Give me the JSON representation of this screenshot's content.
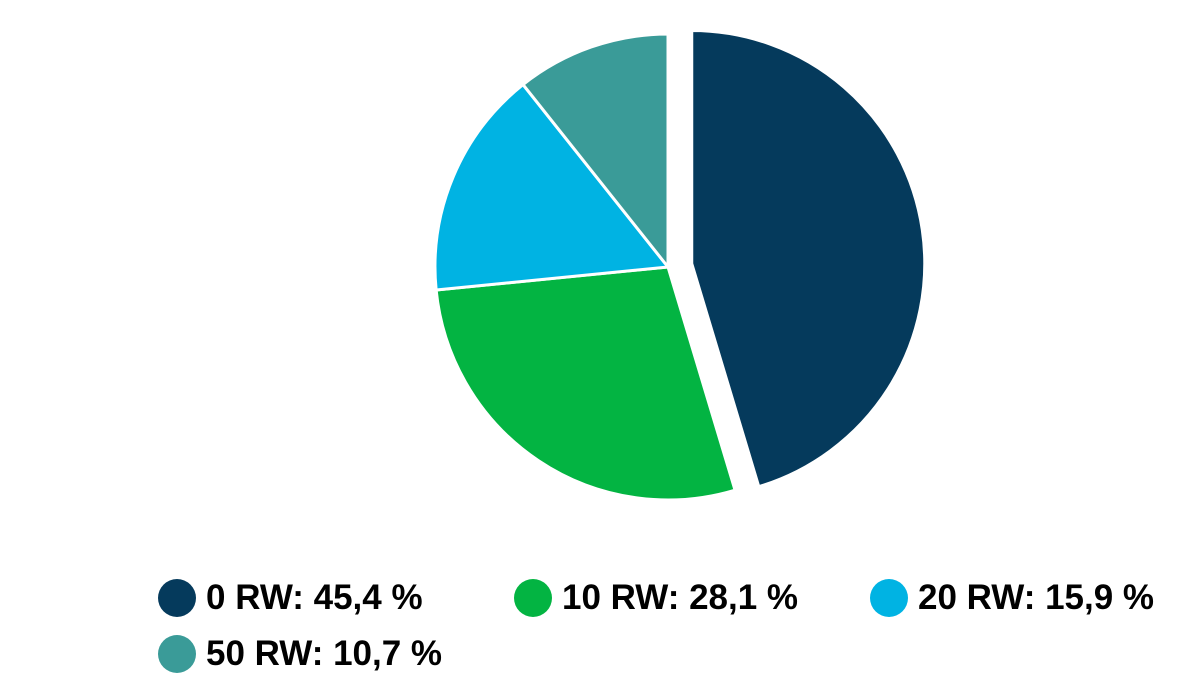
{
  "chart_data": {
    "type": "pie",
    "title": "",
    "slices": [
      {
        "label": "0 RW",
        "value": 45.4,
        "display": "0 RW: 45,4 %",
        "color": "#053a5c",
        "exploded": true
      },
      {
        "label": "10 RW",
        "value": 28.1,
        "display": "10 RW: 28,1 %",
        "color": "#03b442"
      },
      {
        "label": "20 RW",
        "value": 15.9,
        "display": "20 RW: 15,9 %",
        "color": "#00b3e3"
      },
      {
        "label": "50 RW",
        "value": 10.7,
        "display": "50 RW: 10,7 %",
        "color": "#3a9b98"
      }
    ],
    "legend_position": "bottom"
  }
}
